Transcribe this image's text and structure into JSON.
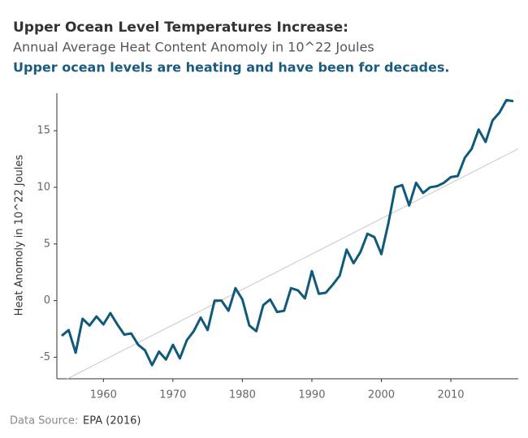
{
  "chart_data": {
    "type": "line",
    "title": "Upper Ocean Level Temperatures Increase:",
    "subtitle": "Annual Average Heat Content Anomoly in 10^22 Joules",
    "annotation": "Upper ocean levels are heating and have been for decades.",
    "y_label": "Heat Anomoly in 10^22 Joules",
    "source_prefix": "Data Source:",
    "source": "EPA (2016)",
    "x": [
      1954,
      1955,
      1956,
      1957,
      1958,
      1959,
      1960,
      1961,
      1962,
      1963,
      1964,
      1965,
      1966,
      1967,
      1968,
      1969,
      1970,
      1971,
      1972,
      1973,
      1974,
      1975,
      1976,
      1977,
      1978,
      1979,
      1980,
      1981,
      1982,
      1983,
      1984,
      1985,
      1986,
      1987,
      1988,
      1989,
      1990,
      1991,
      1992,
      1993,
      1994,
      1995,
      1996,
      1997,
      1998,
      1999,
      2000,
      2001,
      2002,
      2003,
      2004,
      2005,
      2006,
      2007,
      2008,
      2009,
      2010,
      2011,
      2012,
      2013,
      2014,
      2015,
      2016,
      2017,
      2018,
      2019
    ],
    "series": [
      {
        "color": "#0f5a7a",
        "values": [
          -3.1,
          -2.6,
          -4.6,
          -1.6,
          -2.2,
          -1.4,
          -2.1,
          -1.1,
          -2.1,
          -3.0,
          -2.9,
          -3.9,
          -4.4,
          -5.7,
          -4.5,
          -5.2,
          -3.9,
          -5.1,
          -3.5,
          -2.7,
          -1.5,
          -2.6,
          0.0,
          0.0,
          -0.9,
          1.1,
          0.1,
          -2.2,
          -2.7,
          -0.4,
          0.1,
          -1.0,
          -0.9,
          1.1,
          0.9,
          0.2,
          2.6,
          0.6,
          0.7,
          1.4,
          2.2,
          4.5,
          3.3,
          4.3,
          5.9,
          5.6,
          4.1,
          6.8,
          10.0,
          10.2,
          8.4,
          10.4,
          9.5,
          10.0,
          10.1,
          10.4,
          10.9,
          11.0,
          12.6,
          13.4,
          15.1,
          14.0,
          15.9,
          16.6,
          17.7,
          17.6
        ]
      }
    ],
    "trend": {
      "color": "#c8c8c8",
      "x": [
        1954.8,
        2019.7
      ],
      "values": [
        -6.9,
        13.4
      ]
    },
    "xlim": [
      1953.3,
      2019.7
    ],
    "xticks": [
      1960,
      1970,
      1980,
      1990,
      2000,
      2010
    ],
    "ylim": [
      -6.9,
      18.3
    ],
    "yticks": [
      -5,
      0,
      5,
      10,
      15
    ],
    "grid": false
  }
}
